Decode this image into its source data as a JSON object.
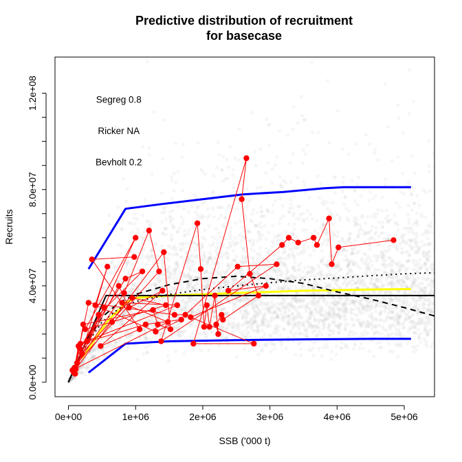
{
  "chart_data": {
    "type": "scatter",
    "title_lines": [
      "Predictive distribution of recruitment",
      "for basecase"
    ],
    "xlabel": "SSB ('000 t)",
    "ylabel": "Recruits",
    "xlim": [
      -200000,
      5450000
    ],
    "ylim": [
      -6000000,
      135000000
    ],
    "x_ticks": [
      0,
      1000000,
      2000000,
      3000000,
      4000000,
      5000000
    ],
    "x_tick_labels": [
      "0e+00",
      "1e+06",
      "2e+06",
      "3e+06",
      "4e+06",
      "5e+06"
    ],
    "y_ticks": [
      0,
      40000000,
      80000000,
      120000000
    ],
    "y_tick_labels": [
      "0.0e+00",
      "4.0e+07",
      "8.0e+07",
      "1.2e+08"
    ],
    "model_labels": [
      {
        "text": "Segreg 0.8",
        "x": 750000,
        "y": 116000000
      },
      {
        "text": "Ricker NA",
        "x": 750000,
        "y": 103000000
      },
      {
        "text": "Bevholt 0.2",
        "x": 750000,
        "y": 90000000
      }
    ],
    "colors": {
      "cloud": "#bdbdbd",
      "observed": "#ff0000",
      "bounds": "#0000ff",
      "median": "#ffff00",
      "fits": "#000000"
    },
    "series": [
      {
        "role": "predictive-upper",
        "color": "#0000ff",
        "x": [
          300000,
          850000,
          1400000,
          2000000,
          2600000,
          3200000,
          3800000,
          4100000,
          5100000
        ],
        "y": [
          47000000,
          72000000,
          74000000,
          76000000,
          78000000,
          79000000,
          80500000,
          81000000,
          81000000
        ]
      },
      {
        "role": "predictive-lower",
        "color": "#0000ff",
        "x": [
          300000,
          850000,
          1500000,
          2500000,
          3500000,
          4500000,
          5100000
        ],
        "y": [
          4000000,
          16000000,
          17000000,
          17500000,
          17800000,
          18000000,
          18000000
        ]
      },
      {
        "role": "predictive-median",
        "color": "#ffff00",
        "x": [
          200000,
          400000,
          600000,
          750000,
          850000,
          1000000,
          1500000,
          2000000,
          2500000,
          3000000,
          3500000,
          4000000,
          4500000,
          5100000
        ],
        "y": [
          10000000,
          18000000,
          26000000,
          30000000,
          33000000,
          35000000,
          36000000,
          36500000,
          37000000,
          37500000,
          38000000,
          38200000,
          38500000,
          38700000
        ]
      },
      {
        "role": "segreg-fit",
        "color": "#000000",
        "dash": "solid",
        "x": [
          0,
          560000,
          5450000
        ],
        "y": [
          0,
          36000000,
          36000000
        ]
      },
      {
        "role": "ricker-fit",
        "color": "#000000",
        "dash": "dashed",
        "x": [
          0,
          250000,
          500000,
          750000,
          1000000,
          1500000,
          2000000,
          2500000,
          3000000,
          3500000,
          4000000,
          4500000,
          5000000,
          5450000
        ],
        "y": [
          0,
          16000000,
          27000000,
          33000000,
          36500000,
          40500000,
          43000000,
          44000000,
          43000000,
          41000000,
          37500000,
          34500000,
          31000000,
          27500000
        ]
      },
      {
        "role": "bevholt-fit",
        "color": "#000000",
        "dash": "dotted",
        "x": [
          0,
          250000,
          500000,
          750000,
          1000000,
          1500000,
          2000000,
          2500000,
          3000000,
          3500000,
          4000000,
          4500000,
          5000000,
          5450000
        ],
        "y": [
          0,
          15000000,
          25000000,
          30500000,
          33500000,
          36500000,
          38500000,
          40000000,
          41300000,
          42500000,
          43300000,
          44200000,
          45000000,
          45500000
        ]
      }
    ],
    "observed": {
      "color": "#ff0000",
      "x": [
        60000,
        80000,
        90000,
        100000,
        110000,
        130000,
        150000,
        170000,
        180000,
        200000,
        220000,
        250000,
        280000,
        300000,
        350000,
        400000,
        450000,
        480000,
        530000,
        580000,
        650000,
        750000,
        800000,
        830000,
        850000,
        900000,
        950000,
        980000,
        1000000,
        1060000,
        1100000,
        1150000,
        1200000,
        1260000,
        1300000,
        1330000,
        1350000,
        1380000,
        1400000,
        1420000,
        1450000,
        1480000,
        1520000,
        1580000,
        1620000,
        1680000,
        1740000,
        1820000,
        1860000,
        1920000,
        1970000,
        2020000,
        2060000,
        2100000,
        2180000,
        2200000,
        2230000,
        2280000,
        2300000,
        2380000,
        2520000,
        2580000,
        2650000,
        2700000,
        2760000,
        2830000,
        2940000,
        3100000,
        3180000,
        3280000,
        3420000,
        3650000,
        3700000,
        3880000,
        3920000,
        4020000,
        4840000
      ],
      "y": [
        5000000,
        4000000,
        6000000,
        3500000,
        5500000,
        8000000,
        15000000,
        14000000,
        16000000,
        12000000,
        24000000,
        22000000,
        17000000,
        33000000,
        51000000,
        32000000,
        28000000,
        15000000,
        31000000,
        48000000,
        25000000,
        40000000,
        33000000,
        37000000,
        43000000,
        31000000,
        35000000,
        52000000,
        60000000,
        22000000,
        46000000,
        24000000,
        63000000,
        30000000,
        21000000,
        24000000,
        46000000,
        17000000,
        38000000,
        54000000,
        32000000,
        25000000,
        22000000,
        28000000,
        32000000,
        26000000,
        28000000,
        27000000,
        16000000,
        66000000,
        47000000,
        23000000,
        32000000,
        23000000,
        36000000,
        24000000,
        20000000,
        28000000,
        26000000,
        38000000,
        48000000,
        76000000,
        93000000,
        45000000,
        16000000,
        36000000,
        40000000,
        49000000,
        57000000,
        60000000,
        58000000,
        60000000,
        57000000,
        68000000,
        49000000,
        56000000,
        59000000
      ]
    }
  }
}
